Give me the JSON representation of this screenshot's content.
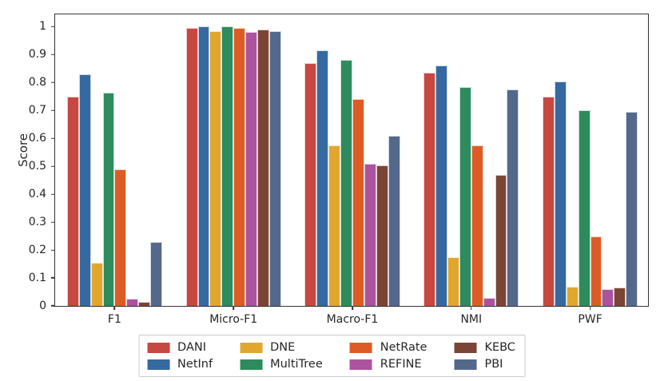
{
  "chart_data": {
    "type": "bar",
    "title": "",
    "xlabel": "",
    "ylabel": "Score",
    "ylim": [
      0,
      1.05
    ],
    "grid": false,
    "legend_position": "below-center",
    "categories": [
      "F1",
      "Micro-F1",
      "Macro-F1",
      "NMI",
      "PWF"
    ],
    "yticks": {
      "values": [
        0,
        0.1,
        0.2,
        0.3,
        0.4,
        0.5,
        0.6,
        0.7,
        0.8,
        0.9,
        1
      ],
      "labels": [
        "0",
        "0.1",
        "0.2",
        "0.3",
        "0.4",
        "0.5",
        "0.6",
        "0.7",
        "0.8",
        "0.9",
        "1"
      ]
    },
    "series": [
      {
        "name": "DANI",
        "color": "#c74741",
        "values": [
          0.75,
          0.995,
          0.87,
          0.835,
          0.75
        ]
      },
      {
        "name": "NetInf",
        "color": "#36699f",
        "values": [
          0.83,
          1.0,
          0.915,
          0.86,
          0.805
        ]
      },
      {
        "name": "DNE",
        "color": "#e0a72f",
        "values": [
          0.155,
          0.985,
          0.575,
          0.175,
          0.07
        ]
      },
      {
        "name": "MultiTree",
        "color": "#2e8b5d",
        "values": [
          0.765,
          1.0,
          0.88,
          0.785,
          0.7
        ]
      },
      {
        "name": "NetRate",
        "color": "#dd5c26",
        "values": [
          0.49,
          0.995,
          0.74,
          0.575,
          0.25
        ]
      },
      {
        "name": "REFINE",
        "color": "#ab539e",
        "values": [
          0.025,
          0.98,
          0.51,
          0.03,
          0.06
        ]
      },
      {
        "name": "KEBC",
        "color": "#7b4535",
        "values": [
          0.015,
          0.99,
          0.505,
          0.47,
          0.065
        ]
      },
      {
        "name": "PBI",
        "color": "#54688c",
        "values": [
          0.23,
          0.985,
          0.61,
          0.775,
          0.695
        ]
      }
    ]
  }
}
